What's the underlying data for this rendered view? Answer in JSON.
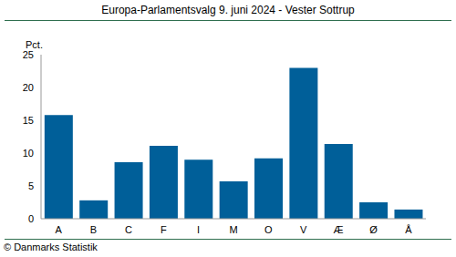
{
  "chart_data": {
    "type": "bar",
    "title": "Europa-Parlamentsvalg 9. juni 2024 - Vester Sottrup",
    "y_label": "Pct.",
    "source": "© Danmarks Statistik",
    "categories": [
      "A",
      "B",
      "C",
      "F",
      "I",
      "M",
      "O",
      "V",
      "Æ",
      "Ø",
      "Å"
    ],
    "values": [
      15.8,
      2.8,
      8.6,
      11.1,
      9.0,
      5.7,
      9.2,
      23.0,
      11.4,
      2.5,
      1.4
    ],
    "color": "#005f99",
    "ylim": [
      0,
      25
    ],
    "yticks": [
      0,
      5,
      10,
      15,
      20,
      25
    ],
    "grid": false
  }
}
